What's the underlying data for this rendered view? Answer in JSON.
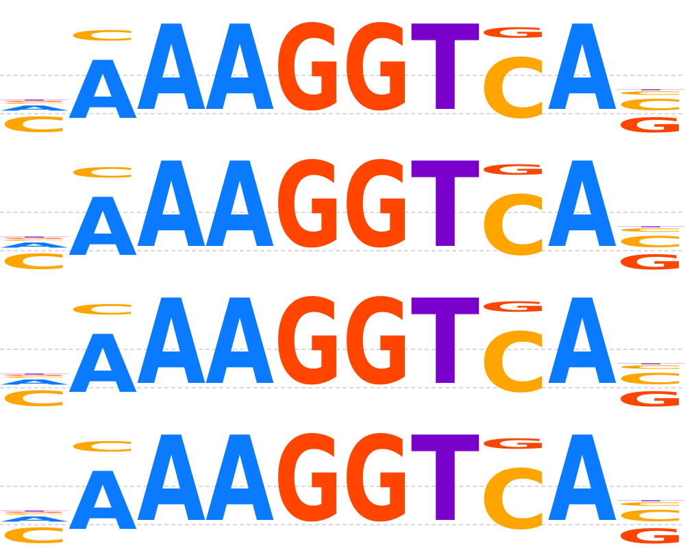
{
  "colors": {
    "A": "#0a7aff",
    "C": "#ffa500",
    "G": "#ff4500",
    "T": "#7a00cc"
  },
  "logo": {
    "copies": 4,
    "positions": [
      [
        {
          "letter": "C",
          "weight": 0.18
        },
        {
          "letter": "A",
          "weight": 0.06
        },
        {
          "letter": "C",
          "weight": 0.015
        },
        {
          "letter": "G",
          "weight": 0.01
        },
        {
          "letter": "T",
          "weight": 0.01
        }
      ],
      [
        {
          "letter": "A",
          "weight": 0.68
        },
        {
          "letter": "C",
          "weight": 0.12
        }
      ],
      [
        {
          "letter": "A",
          "weight": 1.0
        }
      ],
      [
        {
          "letter": "A",
          "weight": 1.0
        }
      ],
      [
        {
          "letter": "G",
          "weight": 1.0
        }
      ],
      [
        {
          "letter": "G",
          "weight": 1.0
        }
      ],
      [
        {
          "letter": "T",
          "weight": 1.0
        }
      ],
      [
        {
          "letter": "C",
          "weight": 0.7
        },
        {
          "letter": "G",
          "weight": 0.12
        }
      ],
      [
        {
          "letter": "A",
          "weight": 1.0
        }
      ],
      [
        {
          "letter": "G",
          "weight": 0.17
        },
        {
          "letter": "C",
          "weight": 0.13
        },
        {
          "letter": "C",
          "weight": 0.04
        },
        {
          "letter": "T",
          "weight": 0.01
        }
      ]
    ]
  }
}
